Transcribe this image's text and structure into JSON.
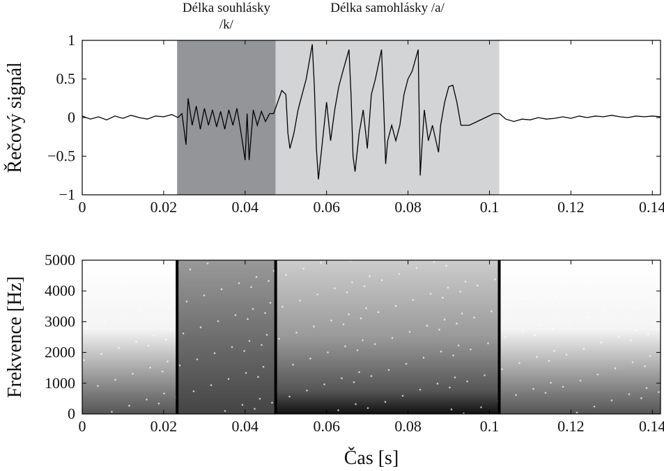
{
  "chart_data": [
    {
      "type": "line",
      "ylabel": "Řečový signál",
      "xlim": [
        0,
        0.142
      ],
      "ylim": [
        -1,
        1
      ],
      "xticks": [
        0,
        0.02,
        0.04,
        0.06,
        0.08,
        0.1,
        0.12,
        0.14
      ],
      "yticks": [
        1,
        0.5,
        0,
        {
          "value": -0.5,
          "label": "−0.5"
        },
        {
          "value": -1,
          "label": "−1"
        }
      ],
      "regions": [
        {
          "label": "Délka souhlásky /k/",
          "start": 0.0233,
          "end": 0.0475,
          "color": "#939598"
        },
        {
          "label": "Délka samohlásky /a/",
          "start": 0.0475,
          "end": 0.1024,
          "color": "#d3d4d6"
        }
      ],
      "series": [
        {
          "color": "#000000",
          "x": [
            0,
            0.002,
            0.004,
            0.006,
            0.008,
            0.01,
            0.012,
            0.014,
            0.016,
            0.018,
            0.02,
            0.022,
            0.0235,
            0.0245,
            0.0255,
            0.026,
            0.027,
            0.028,
            0.029,
            0.03,
            0.031,
            0.032,
            0.033,
            0.034,
            0.035,
            0.036,
            0.037,
            0.038,
            0.039,
            0.04,
            0.0405,
            0.041,
            0.042,
            0.043,
            0.044,
            0.045,
            0.046,
            0.047,
            0.048,
            0.049,
            0.05,
            0.0505,
            0.051,
            0.052,
            0.053,
            0.054,
            0.055,
            0.0565,
            0.057,
            0.0575,
            0.058,
            0.059,
            0.06,
            0.061,
            0.062,
            0.063,
            0.064,
            0.0655,
            0.066,
            0.0665,
            0.067,
            0.068,
            0.069,
            0.07,
            0.071,
            0.072,
            0.0735,
            0.074,
            0.0745,
            0.075,
            0.076,
            0.077,
            0.078,
            0.079,
            0.08,
            0.081,
            0.0825,
            0.083,
            0.0835,
            0.084,
            0.085,
            0.086,
            0.0875,
            0.088,
            0.089,
            0.09,
            0.091,
            0.092,
            0.093,
            0.095,
            0.097,
            0.099,
            0.101,
            0.1025,
            0.104,
            0.106,
            0.108,
            0.11,
            0.112,
            0.114,
            0.116,
            0.118,
            0.12,
            0.122,
            0.124,
            0.126,
            0.128,
            0.13,
            0.132,
            0.134,
            0.136,
            0.138,
            0.14,
            0.142
          ],
          "values": [
            0.02,
            -0.02,
            0.01,
            -0.03,
            0.02,
            -0.01,
            0.03,
            0.0,
            -0.02,
            0.02,
            0.01,
            0.04,
            0.0,
            0.05,
            -0.35,
            0.25,
            -0.1,
            0.15,
            -0.15,
            0.12,
            -0.1,
            0.1,
            -0.12,
            0.08,
            -0.15,
            0.1,
            -0.1,
            0.12,
            -0.2,
            -0.55,
            0.05,
            -0.55,
            0.1,
            -0.1,
            0.08,
            -0.05,
            0.05,
            0.05,
            0.2,
            0.35,
            0.3,
            -0.2,
            -0.4,
            -0.2,
            0.1,
            0.3,
            0.5,
            0.95,
            0.4,
            -0.4,
            -0.8,
            -0.3,
            0.2,
            -0.3,
            0.1,
            0.4,
            0.6,
            0.88,
            0.3,
            -0.5,
            -0.7,
            -0.2,
            0.1,
            -0.4,
            0.3,
            0.5,
            0.88,
            0.2,
            -0.6,
            -0.3,
            -0.1,
            -0.3,
            -0.1,
            0.3,
            0.5,
            0.6,
            0.88,
            -0.75,
            -0.3,
            0.1,
            -0.3,
            -0.1,
            -0.45,
            -0.1,
            0.2,
            0.4,
            0.42,
            0.2,
            -0.1,
            -0.1,
            -0.05,
            0.0,
            0.05,
            0.05,
            -0.02,
            -0.05,
            -0.02,
            -0.03,
            0.0,
            -0.02,
            -0.01,
            0.01,
            -0.01,
            0.02,
            0.0,
            0.02,
            0.01,
            0.03,
            0.01,
            0.0,
            0.02,
            0.01,
            0.02,
            0.01
          ]
        }
      ]
    },
    {
      "type": "spectrogram",
      "ylabel": "Frekvence [Hz]",
      "xlabel": "Čas [s]",
      "xlim": [
        0,
        0.142
      ],
      "ylim": [
        0,
        5000
      ],
      "xticks": [
        0,
        0.02,
        0.04,
        0.06,
        0.08,
        0.1,
        0.12,
        0.14
      ],
      "yticks": [
        0,
        1000,
        2000,
        3000,
        4000,
        5000
      ]
    }
  ]
}
